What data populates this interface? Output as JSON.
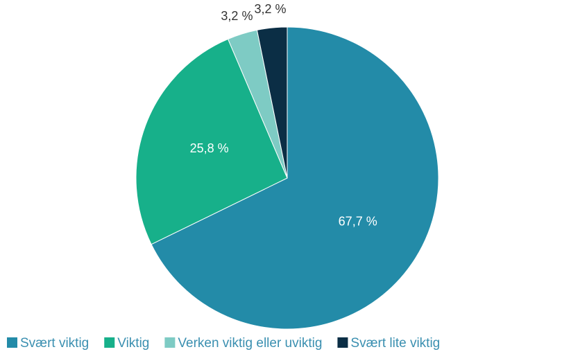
{
  "chart_data": {
    "type": "pie",
    "categories": [
      "Svært viktig",
      "Viktig",
      "Verken viktig eller uviktig",
      "Svært lite viktig"
    ],
    "values": [
      67.7,
      25.8,
      3.2,
      3.2
    ],
    "value_labels": [
      "67,7 %",
      "25,8 %",
      "3,2 %",
      "3,2 %"
    ],
    "colors": [
      "#238ba8",
      "#17b08a",
      "#7ecbc4",
      "#0b2e45"
    ],
    "legend": "bottom"
  }
}
